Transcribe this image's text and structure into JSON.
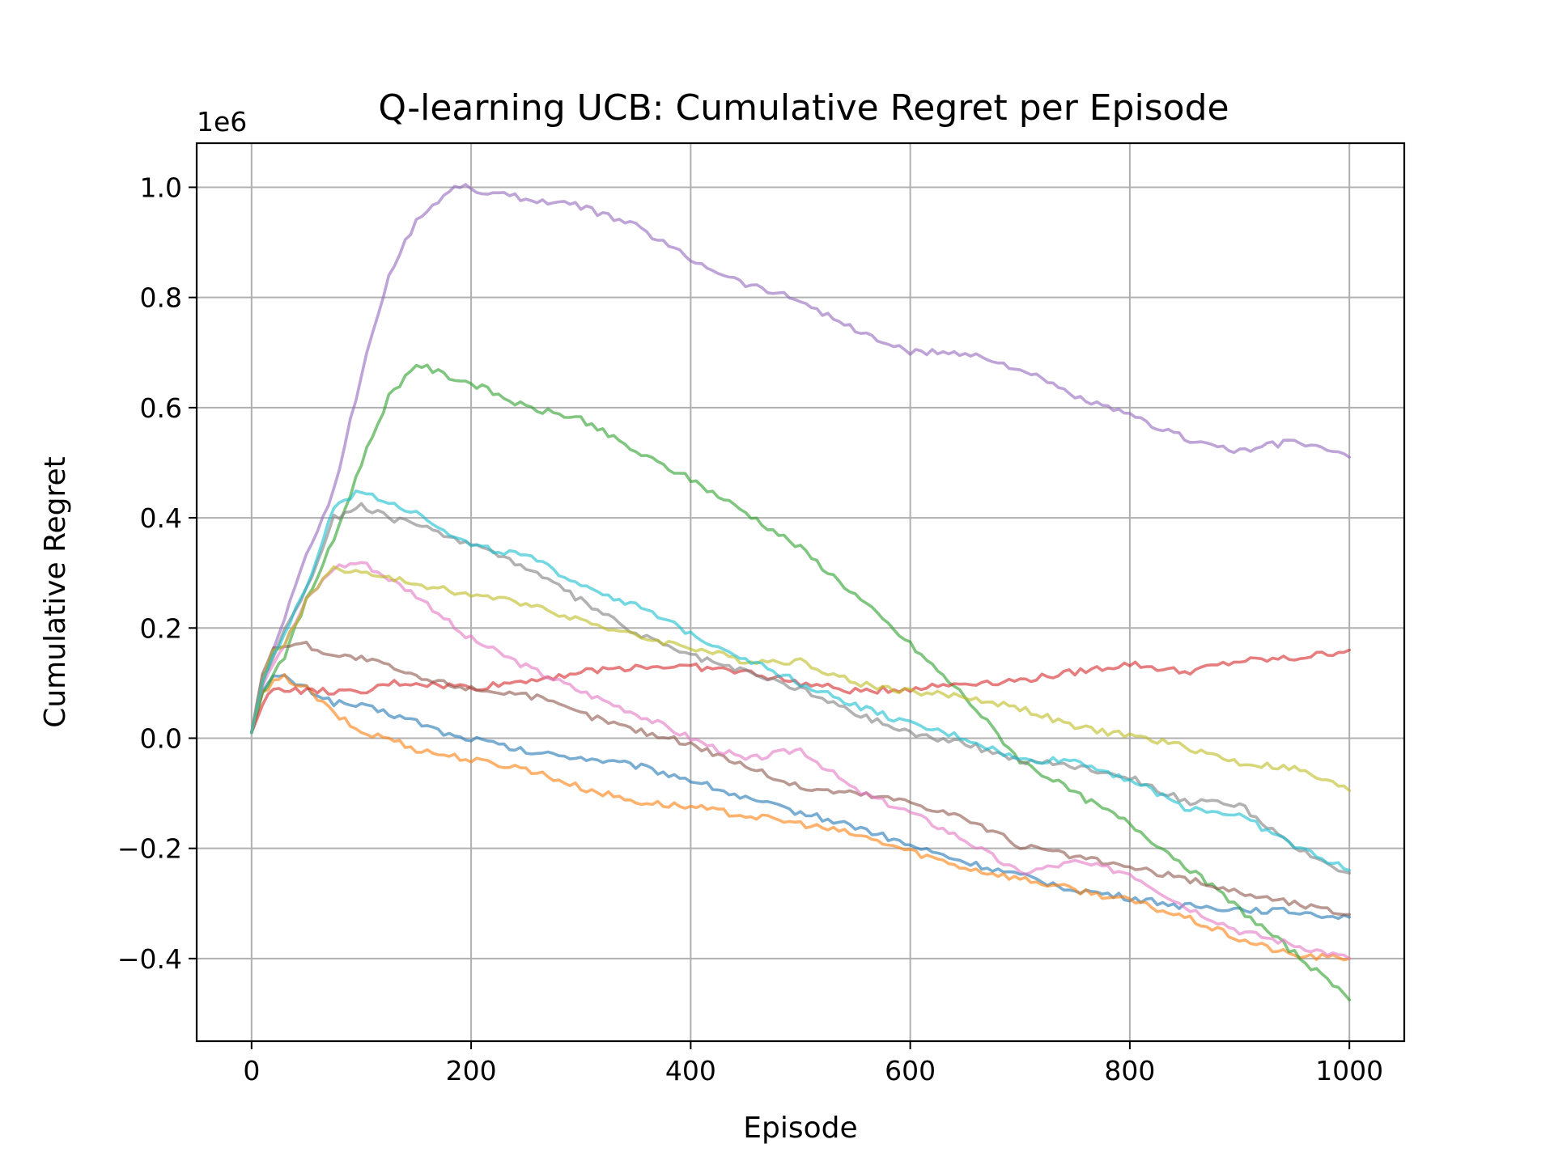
{
  "chart_data": {
    "type": "line",
    "title": "Q-learning UCB: Cumulative Regret per Episode",
    "xlabel": "Episode",
    "ylabel": "Cumulative Regret",
    "y_offset_label": "1e6",
    "xlim": [
      -50,
      1050
    ],
    "ylim": [
      -0.55,
      1.08
    ],
    "x_ticks": [
      0,
      200,
      400,
      600,
      800,
      1000
    ],
    "x_tick_labels": [
      "0",
      "200",
      "400",
      "600",
      "800",
      "1000"
    ],
    "y_ticks": [
      -0.4,
      -0.2,
      0.0,
      0.2,
      0.4,
      0.6,
      0.8,
      1.0
    ],
    "y_tick_labels": [
      "−0.4",
      "−0.2",
      "0.0",
      "0.2",
      "0.4",
      "0.6",
      "0.8",
      "1.0"
    ],
    "grid": true,
    "x": [
      0,
      10,
      20,
      30,
      50,
      75,
      100,
      125,
      150,
      175,
      190,
      200,
      250,
      300,
      350,
      400,
      450,
      500,
      550,
      600,
      650,
      700,
      750,
      800,
      850,
      900,
      950,
      1000
    ],
    "series": [
      {
        "color": "#1f77b4",
        "values": [
          0.01,
          0.09,
          0.11,
          0.11,
          0.09,
          0.065,
          0.058,
          0.045,
          0.03,
          0.01,
          0.0,
          0.0,
          -0.025,
          -0.035,
          -0.05,
          -0.075,
          -0.11,
          -0.135,
          -0.16,
          -0.195,
          -0.225,
          -0.25,
          -0.275,
          -0.29,
          -0.305,
          -0.31,
          -0.315,
          -0.325
        ]
      },
      {
        "color": "#ff7f0e",
        "values": [
          0.01,
          0.08,
          0.1,
          0.11,
          0.09,
          0.045,
          0.01,
          0.0,
          -0.02,
          -0.03,
          -0.035,
          -0.04,
          -0.055,
          -0.09,
          -0.115,
          -0.125,
          -0.14,
          -0.155,
          -0.175,
          -0.205,
          -0.235,
          -0.255,
          -0.275,
          -0.295,
          -0.325,
          -0.365,
          -0.395,
          -0.4
        ]
      },
      {
        "color": "#2ca02c",
        "values": [
          0.01,
          0.08,
          0.12,
          0.15,
          0.25,
          0.36,
          0.5,
          0.62,
          0.68,
          0.66,
          0.65,
          0.645,
          0.6,
          0.58,
          0.52,
          0.47,
          0.41,
          0.345,
          0.26,
          0.17,
          0.075,
          -0.04,
          -0.1,
          -0.155,
          -0.23,
          -0.31,
          -0.39,
          -0.475
        ]
      },
      {
        "color": "#d62728",
        "values": [
          0.01,
          0.06,
          0.09,
          0.09,
          0.085,
          0.085,
          0.08,
          0.1,
          0.1,
          0.095,
          0.095,
          0.09,
          0.105,
          0.12,
          0.13,
          0.13,
          0.12,
          0.1,
          0.085,
          0.09,
          0.1,
          0.105,
          0.12,
          0.135,
          0.12,
          0.14,
          0.145,
          0.16
        ]
      },
      {
        "color": "#9467bd",
        "values": [
          0.01,
          0.1,
          0.16,
          0.22,
          0.33,
          0.45,
          0.66,
          0.84,
          0.94,
          0.985,
          1.005,
          0.995,
          0.98,
          0.965,
          0.93,
          0.87,
          0.825,
          0.795,
          0.74,
          0.7,
          0.7,
          0.67,
          0.62,
          0.585,
          0.545,
          0.52,
          0.54,
          0.51
        ]
      },
      {
        "color": "#8c564b",
        "values": [
          0.01,
          0.12,
          0.16,
          0.17,
          0.17,
          0.15,
          0.145,
          0.13,
          0.11,
          0.1,
          0.095,
          0.09,
          0.08,
          0.045,
          0.015,
          -0.01,
          -0.05,
          -0.09,
          -0.1,
          -0.115,
          -0.145,
          -0.195,
          -0.215,
          -0.235,
          -0.255,
          -0.28,
          -0.3,
          -0.32
        ]
      },
      {
        "color": "#e377c2",
        "values": [
          0.01,
          0.1,
          0.14,
          0.17,
          0.25,
          0.31,
          0.32,
          0.29,
          0.26,
          0.22,
          0.19,
          0.18,
          0.13,
          0.085,
          0.045,
          0.0,
          -0.04,
          -0.02,
          -0.095,
          -0.135,
          -0.185,
          -0.245,
          -0.225,
          -0.245,
          -0.305,
          -0.35,
          -0.375,
          -0.4
        ]
      },
      {
        "color": "#7f7f7f",
        "values": [
          0.01,
          0.11,
          0.15,
          0.2,
          0.27,
          0.4,
          0.42,
          0.4,
          0.39,
          0.365,
          0.36,
          0.355,
          0.31,
          0.25,
          0.19,
          0.15,
          0.12,
          0.09,
          0.045,
          0.01,
          -0.01,
          -0.04,
          -0.05,
          -0.07,
          -0.115,
          -0.12,
          -0.2,
          -0.245
        ]
      },
      {
        "color": "#bcbd22",
        "values": [
          0.01,
          0.1,
          0.16,
          0.17,
          0.25,
          0.31,
          0.3,
          0.29,
          0.28,
          0.27,
          0.265,
          0.26,
          0.245,
          0.215,
          0.185,
          0.165,
          0.14,
          0.14,
          0.1,
          0.085,
          0.075,
          0.055,
          0.02,
          0.005,
          -0.015,
          -0.045,
          -0.055,
          -0.095
        ]
      },
      {
        "color": "#17becf",
        "values": [
          0.01,
          0.1,
          0.15,
          0.19,
          0.27,
          0.42,
          0.45,
          0.43,
          0.41,
          0.38,
          0.36,
          0.35,
          0.33,
          0.28,
          0.24,
          0.19,
          0.145,
          0.1,
          0.06,
          0.025,
          0.0,
          -0.04,
          -0.04,
          -0.075,
          -0.125,
          -0.14,
          -0.195,
          -0.24
        ]
      }
    ]
  }
}
